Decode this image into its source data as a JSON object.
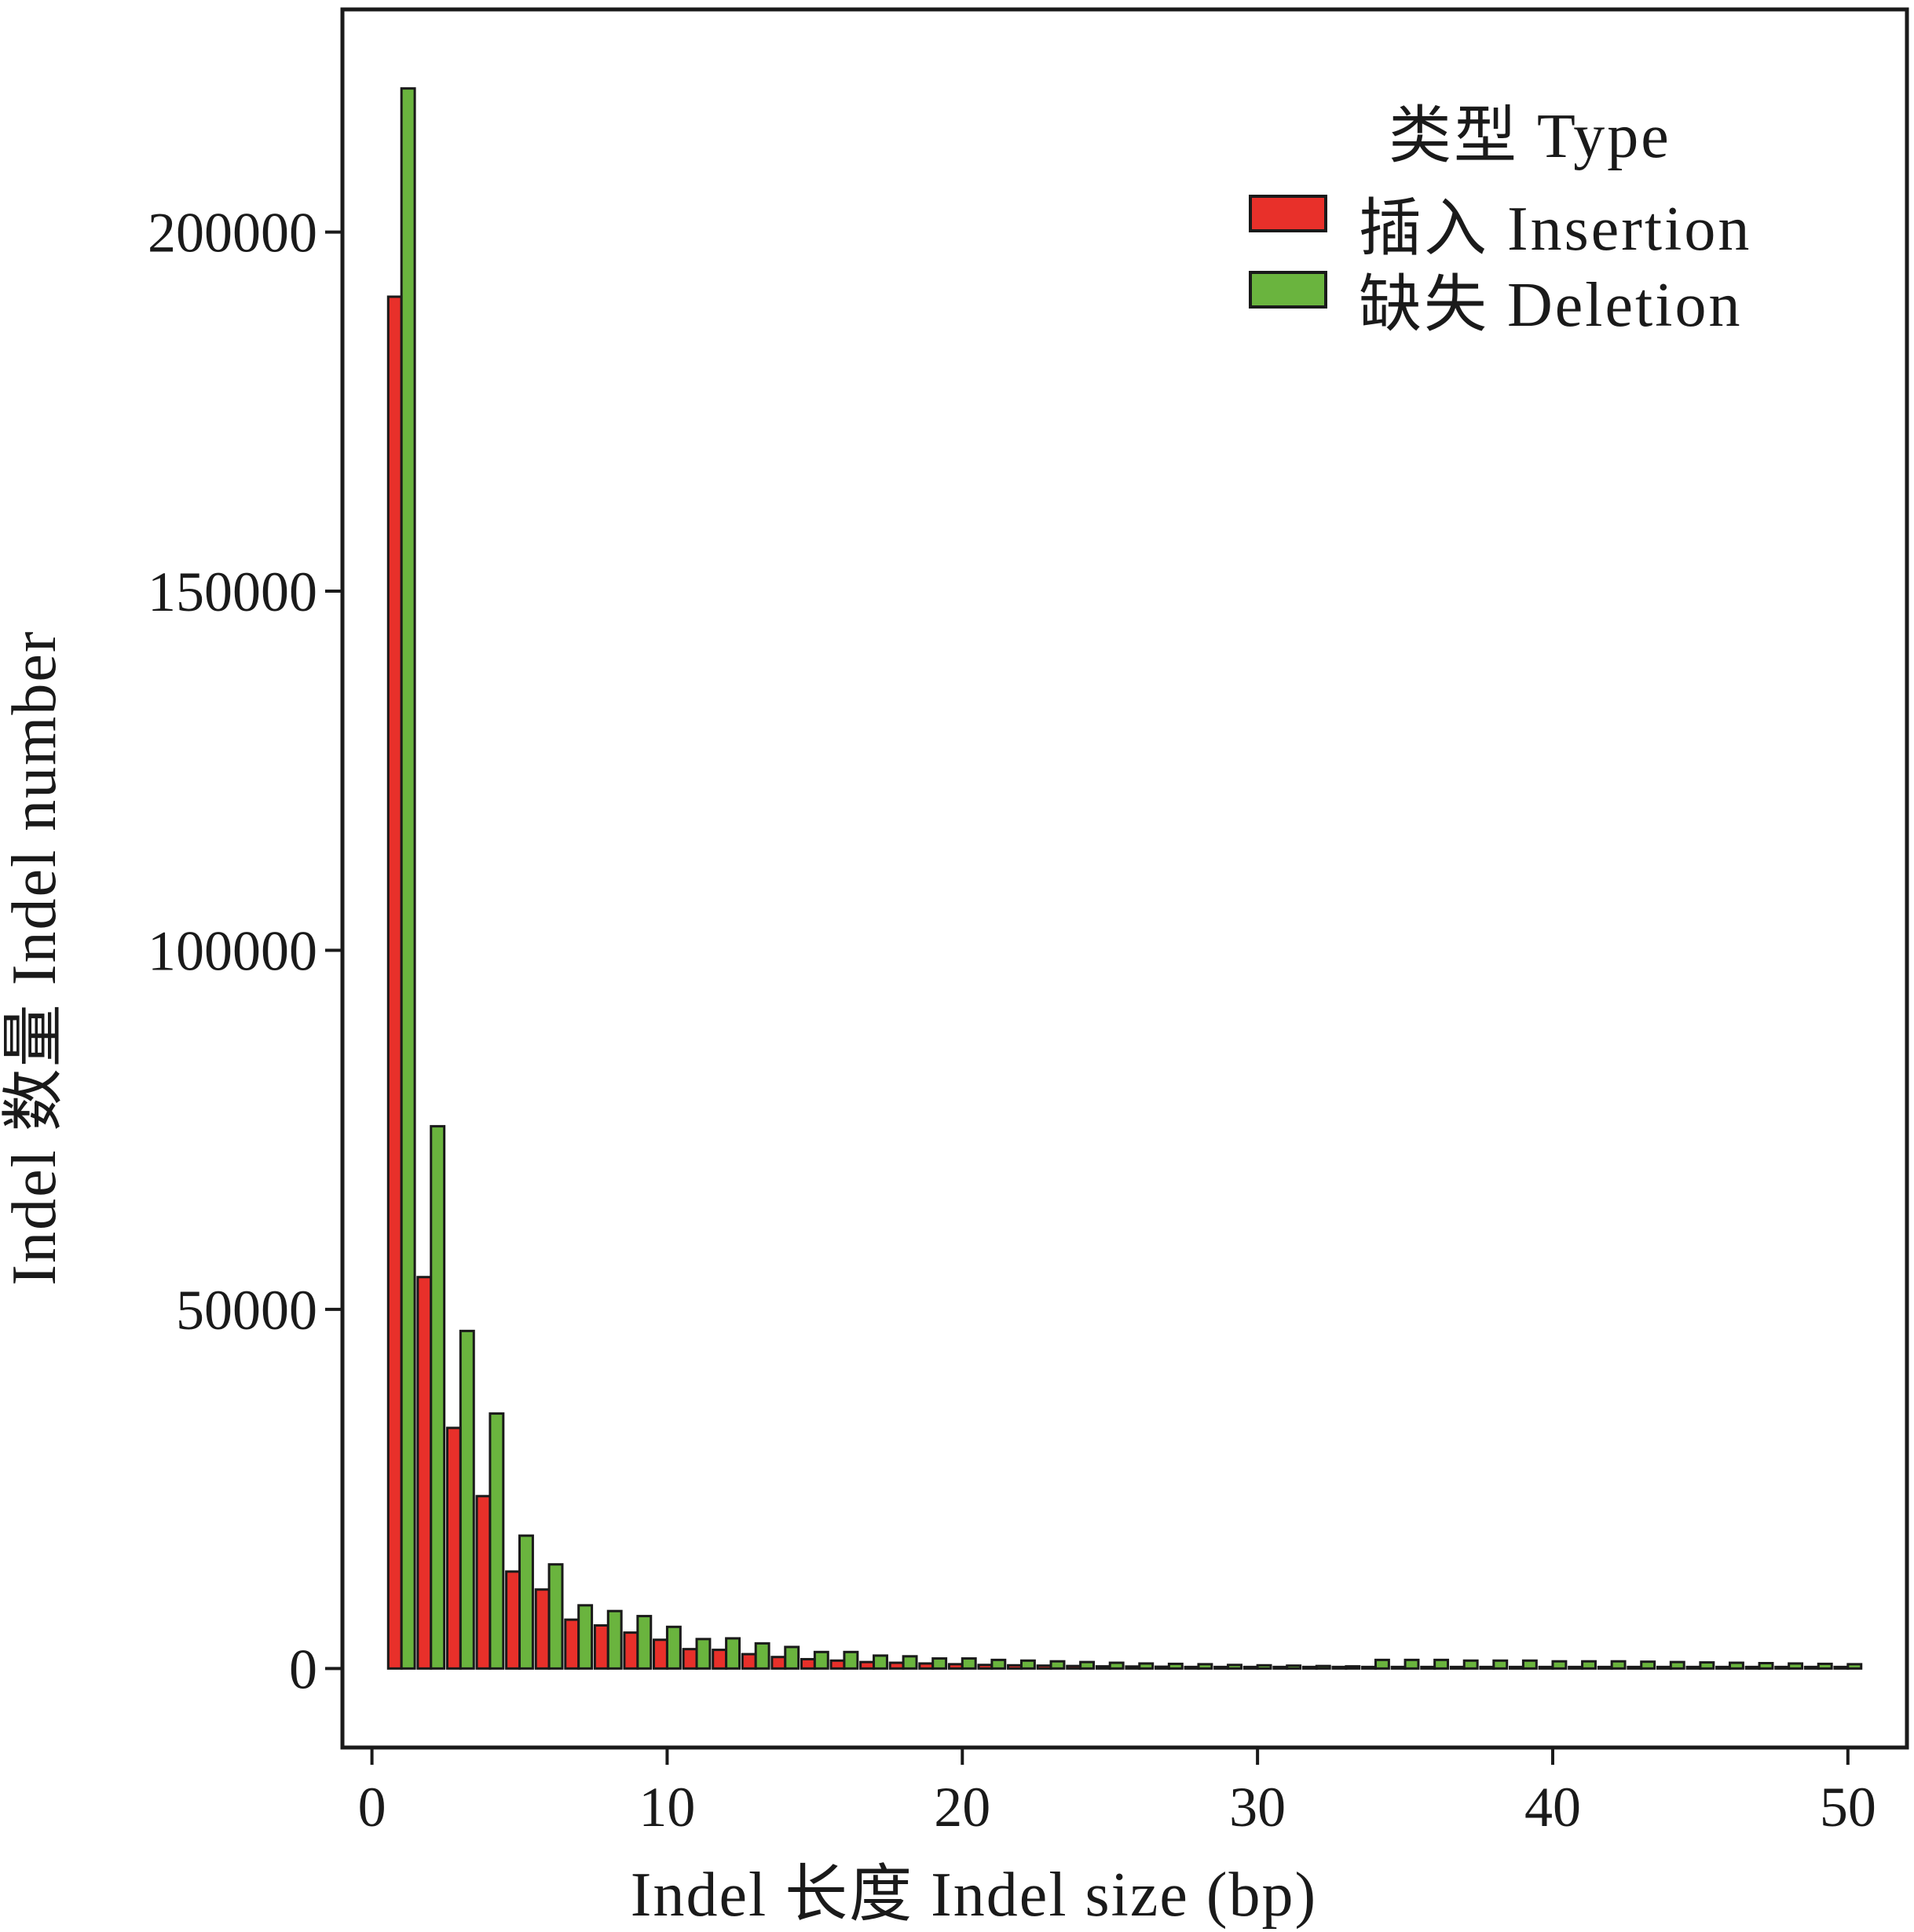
{
  "chart_data": {
    "type": "bar",
    "title": "",
    "xlabel": "Indel 长度 Indel size (bp)",
    "ylabel": "Indel 数量 Indel number",
    "xlim": [
      -1,
      52
    ],
    "ylim": [
      -11000,
      231000
    ],
    "x_ticks": [
      "0",
      "10",
      "20",
      "30",
      "40",
      "50"
    ],
    "x_tick_values": [
      0,
      10,
      20,
      30,
      40,
      50
    ],
    "y_ticks": [
      "0",
      "50000",
      "100000",
      "150000",
      "200000"
    ],
    "y_tick_values": [
      0,
      50000,
      100000,
      150000,
      200000
    ],
    "legend": {
      "title": "类型 Type",
      "placement": "top-right"
    },
    "x": [
      1,
      2,
      3,
      4,
      5,
      6,
      7,
      8,
      9,
      10,
      11,
      12,
      13,
      14,
      15,
      16,
      17,
      18,
      19,
      20,
      21,
      22,
      23,
      24,
      25,
      26,
      27,
      28,
      29,
      30,
      31,
      32,
      33,
      34,
      35,
      36,
      37,
      38,
      39,
      40,
      41,
      42,
      43,
      44,
      45,
      46,
      47,
      48,
      49,
      50
    ],
    "series": [
      {
        "name": "插入 Insertion",
        "color": "#e8302a",
        "values": [
          191000,
          54500,
          33500,
          24000,
          13500,
          11000,
          6800,
          6000,
          5000,
          4000,
          2700,
          2600,
          2000,
          1600,
          1300,
          1100,
          900,
          800,
          700,
          600,
          500,
          450,
          400,
          350,
          300,
          280,
          250,
          220,
          200,
          180,
          160,
          150,
          140,
          130,
          120,
          110,
          100,
          95,
          90,
          85,
          80,
          75,
          70,
          65,
          60,
          55,
          50,
          45,
          40,
          35
        ]
      },
      {
        "name": "缺失 Deletion",
        "color": "#6ab43e",
        "values": [
          220000,
          75500,
          47000,
          35500,
          18500,
          14500,
          8800,
          8000,
          7300,
          5800,
          4100,
          4200,
          3500,
          3000,
          2300,
          2300,
          1800,
          1700,
          1400,
          1400,
          1200,
          1100,
          1000,
          900,
          800,
          700,
          650,
          600,
          500,
          450,
          400,
          350,
          300,
          1200,
          1200,
          1200,
          1100,
          1100,
          1100,
          1000,
          1000,
          1000,
          950,
          900,
          850,
          800,
          750,
          700,
          650,
          600
        ]
      }
    ]
  }
}
